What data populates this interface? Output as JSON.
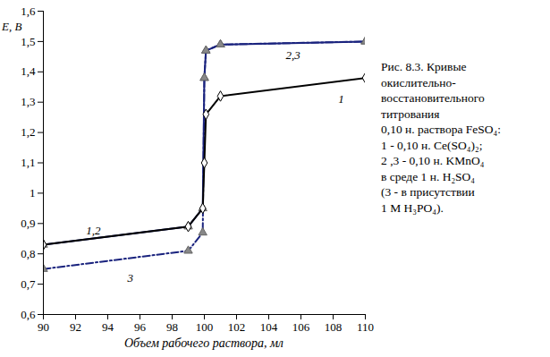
{
  "chart_data": {
    "type": "line",
    "x_label": "Объем рабочего раствора, мл",
    "y_label": "E, В",
    "caption": [
      "Рис. 8.3. Кривые",
      "окислительно-",
      "восстановительного",
      "титрования",
      "0,10 н. раствора FeSO₄:",
      "1 - 0,10 н. Ce(SO₄)₂;",
      "2 ,3 - 0,10 н. KMnO₄",
      "в среде 1 н.  H₂SO₄",
      "(3 - в присутствии",
      " 1 М H₃PO₄)."
    ],
    "xlim": [
      90,
      110
    ],
    "xticks": [
      90,
      92,
      94,
      96,
      98,
      100,
      102,
      104,
      106,
      108,
      110
    ],
    "ylim": [
      0.6,
      1.6
    ],
    "yticks": [
      {
        "value": 0.6,
        "label": "0,6"
      },
      {
        "value": 0.7,
        "label": "0,7"
      },
      {
        "value": 0.8,
        "label": "0,8"
      },
      {
        "value": 0.9,
        "label": "0,9"
      },
      1,
      {
        "value": 1.1,
        "label": "1,1"
      },
      {
        "value": 1.2,
        "label": "1,2"
      },
      {
        "value": 1.3,
        "label": "1,3"
      },
      {
        "value": 1.4,
        "label": "1,4"
      },
      {
        "value": 1.5,
        "label": "1,5"
      },
      {
        "value": 1.6,
        "label": "1,6"
      }
    ],
    "grid": false,
    "series": [
      {
        "name": "3",
        "color": "#1a237e",
        "marker": "triangle",
        "line_style": "dashdot",
        "x": [
          90,
          99,
          99.9,
          100,
          100.1,
          101,
          110
        ],
        "values": [
          0.75,
          0.81,
          0.87,
          1.38,
          1.47,
          1.49,
          1.5
        ]
      },
      {
        "name": "2",
        "color": "#1a237e",
        "marker": "triangle",
        "line_style": "solid",
        "x": [
          90,
          99,
          99.9,
          100,
          100.1,
          101,
          110
        ],
        "values": [
          0.83,
          0.89,
          0.95,
          1.38,
          1.47,
          1.49,
          1.5
        ]
      },
      {
        "name": "1",
        "color": "#000000",
        "marker": "diamond",
        "line_style": "solid",
        "x": [
          90,
          99,
          99.9,
          100,
          100.1,
          101,
          110
        ],
        "values": [
          0.83,
          0.89,
          0.95,
          1.1,
          1.26,
          1.32,
          1.38
        ]
      }
    ],
    "annotations": [
      {
        "text": "1,2",
        "x": 93.1,
        "y": 0.875
      },
      {
        "text": "2,3",
        "x": 105.5,
        "y": 1.455
      },
      {
        "text": "1",
        "x": 108.5,
        "y": 1.31
      },
      {
        "text": "3",
        "x": 95.4,
        "y": 0.72
      }
    ]
  }
}
